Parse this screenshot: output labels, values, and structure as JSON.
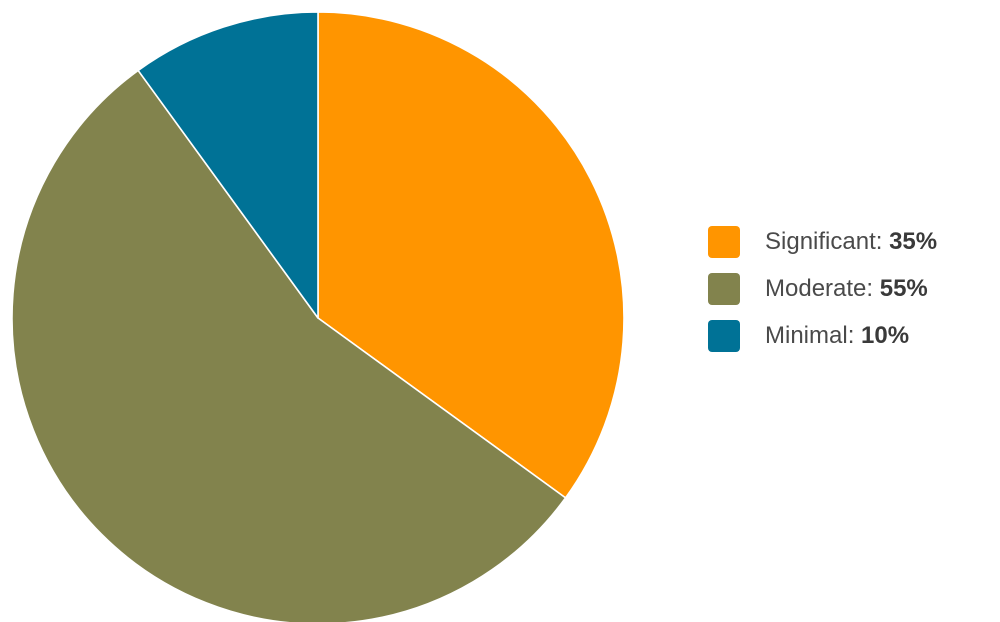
{
  "chart_data": {
    "type": "pie",
    "title": "",
    "legend_position": "right",
    "slices": [
      {
        "label": "Significant",
        "value": 35,
        "display": "35%",
        "color": "#ff9500"
      },
      {
        "label": "Moderate",
        "value": 55,
        "display": "55%",
        "color": "#82834d"
      },
      {
        "label": "Minimal",
        "value": 10,
        "display": "10%",
        "color": "#007296"
      }
    ]
  }
}
